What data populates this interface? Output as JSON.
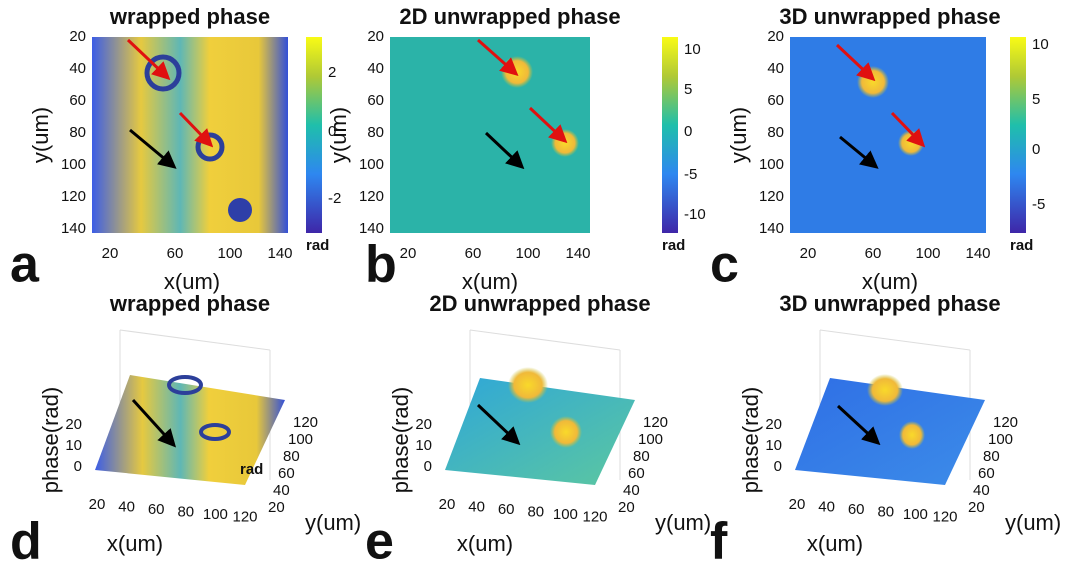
{
  "panels": [
    {
      "letter": "a",
      "title": "wrapped phase",
      "xlabel": "x(um)",
      "ylabel": "y(um)",
      "xticks": [
        "20",
        "60",
        "100",
        "140"
      ],
      "yticks": [
        "20",
        "40",
        "60",
        "80",
        "100",
        "120",
        "140"
      ],
      "cbticks": [
        "2",
        "0",
        "-2"
      ],
      "cbunit": "rad"
    },
    {
      "letter": "b",
      "title": "2D unwrapped phase",
      "xlabel": "x(um)",
      "ylabel": "y(um)",
      "xticks": [
        "20",
        "60",
        "100",
        "140"
      ],
      "yticks": [
        "20",
        "40",
        "60",
        "80",
        "100",
        "120",
        "140"
      ],
      "cbticks": [
        "10",
        "5",
        "0",
        "-5",
        "-10"
      ],
      "cbunit": "rad"
    },
    {
      "letter": "c",
      "title": "3D unwrapped phase",
      "xlabel": "x(um)",
      "ylabel": "y(um)",
      "xticks": [
        "20",
        "60",
        "100",
        "140"
      ],
      "yticks": [
        "20",
        "40",
        "60",
        "80",
        "100",
        "120",
        "140"
      ],
      "cbticks": [
        "10",
        "5",
        "0",
        "-5"
      ],
      "cbunit": "rad"
    },
    {
      "letter": "d",
      "title": "wrapped phase",
      "xlabel": "x(um)",
      "ylabel": "y(um)",
      "zlabel": "phase(rad)",
      "xticks": [
        "20",
        "40",
        "60",
        "80",
        "100",
        "120"
      ],
      "yticks": [
        "20",
        "40",
        "60",
        "80",
        "100",
        "120"
      ],
      "zticks": [
        "20",
        "10",
        "0"
      ],
      "unit": "rad"
    },
    {
      "letter": "e",
      "title": "2D unwrapped phase",
      "xlabel": "x(um)",
      "ylabel": "y(um)",
      "zlabel": "phase(rad)",
      "xticks": [
        "20",
        "40",
        "60",
        "80",
        "100",
        "120"
      ],
      "yticks": [
        "20",
        "40",
        "60",
        "80",
        "100",
        "120"
      ],
      "zticks": [
        "20",
        "10",
        "0"
      ]
    },
    {
      "letter": "f",
      "title": "3D unwrapped phase",
      "xlabel": "x(um)",
      "ylabel": "y(um)",
      "zlabel": "phase(rad)",
      "xticks": [
        "20",
        "40",
        "60",
        "80",
        "100",
        "120"
      ],
      "yticks": [
        "20",
        "40",
        "60",
        "80",
        "100",
        "120"
      ],
      "zticks": [
        "20",
        "10",
        "0"
      ]
    }
  ]
}
